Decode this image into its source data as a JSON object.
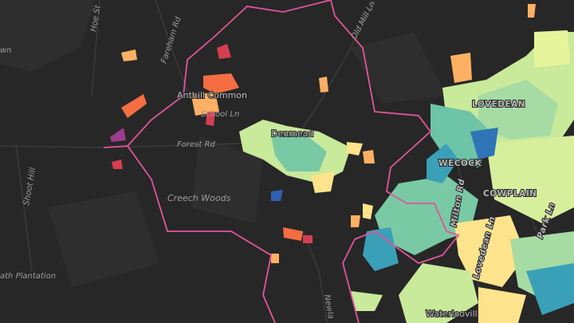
{
  "labels": [
    {
      "text": "Hoe St"
    },
    {
      "text": "Fareham Rd"
    },
    {
      "text": "Old Mill Ln"
    },
    {
      "text": "Anthill Common"
    },
    {
      "text": "School Ln"
    },
    {
      "text": "Denmead"
    },
    {
      "text": "Forest Rd"
    },
    {
      "text": "Creech Woods"
    },
    {
      "text": "Shoot Hill"
    },
    {
      "text": "ath Plantation"
    },
    {
      "text": "wn"
    },
    {
      "text": "LOVEDEAN"
    },
    {
      "text": "WECOCK"
    },
    {
      "text": "COWPLAIN"
    },
    {
      "text": "Milton Rd"
    },
    {
      "text": "Park Ln"
    },
    {
      "text": "Lovedean Ln"
    },
    {
      "text": "Newla"
    },
    {
      "text": "Waterloovill"
    }
  ]
}
